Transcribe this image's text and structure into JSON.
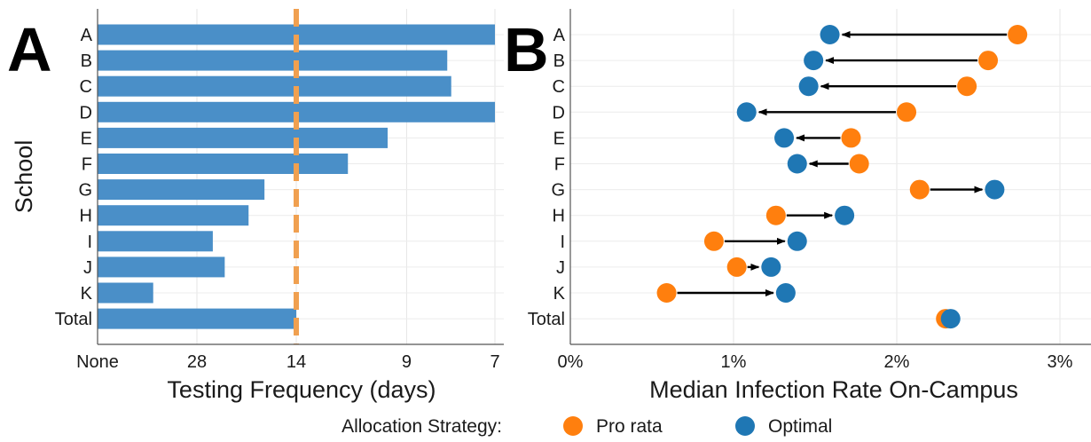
{
  "panel_a_label": "A",
  "panel_b_label": "B",
  "legend": {
    "title": "Allocation Strategy:",
    "items": [
      {
        "label": "Pro rata",
        "color": "#ff7f0e"
      },
      {
        "label": "Optimal",
        "color": "#1f77b4"
      }
    ]
  },
  "chart_data": [
    {
      "type": "bar",
      "orientation": "horizontal",
      "ylabel": "School",
      "xlabel": "Testing Frequency (days)",
      "categories": [
        "A",
        "B",
        "C",
        "D",
        "E",
        "F",
        "G",
        "H",
        "I",
        "J",
        "K",
        "Total"
      ],
      "x_ticks": [
        "None",
        "28",
        "14",
        "9",
        "7"
      ],
      "x_scale": "tests per week (reciprocal of days)",
      "values_tests_per_week": [
        1.0,
        0.88,
        0.89,
        1.0,
        0.73,
        0.63,
        0.42,
        0.38,
        0.29,
        0.32,
        0.14,
        0.5
      ],
      "reference_line": {
        "value": "14",
        "style": "dashed",
        "color": "#f0a050"
      },
      "bar_color": "#4a8fc8",
      "grid": true
    },
    {
      "type": "dot-arrow",
      "xlabel": "Median Infection Rate On-Campus",
      "categories": [
        "A",
        "B",
        "C",
        "D",
        "E",
        "F",
        "G",
        "H",
        "I",
        "J",
        "K",
        "Total"
      ],
      "x_ticks": [
        "0%",
        "1%",
        "2%",
        "3%"
      ],
      "xlim": [
        0,
        0.032
      ],
      "series": [
        {
          "name": "Pro rata",
          "color": "#ff7f0e",
          "values": [
            0.0274,
            0.0256,
            0.0243,
            0.0206,
            0.0172,
            0.0177,
            0.0214,
            0.0126,
            0.0088,
            0.0102,
            0.0059,
            0.023
          ]
        },
        {
          "name": "Optimal",
          "color": "#1f77b4",
          "values": [
            0.0159,
            0.0149,
            0.0146,
            0.0108,
            0.0131,
            0.0139,
            0.026,
            0.0168,
            0.0139,
            0.0123,
            0.0132,
            0.0233
          ]
        }
      ],
      "arrows": "from Pro rata to Optimal",
      "grid": true
    }
  ]
}
